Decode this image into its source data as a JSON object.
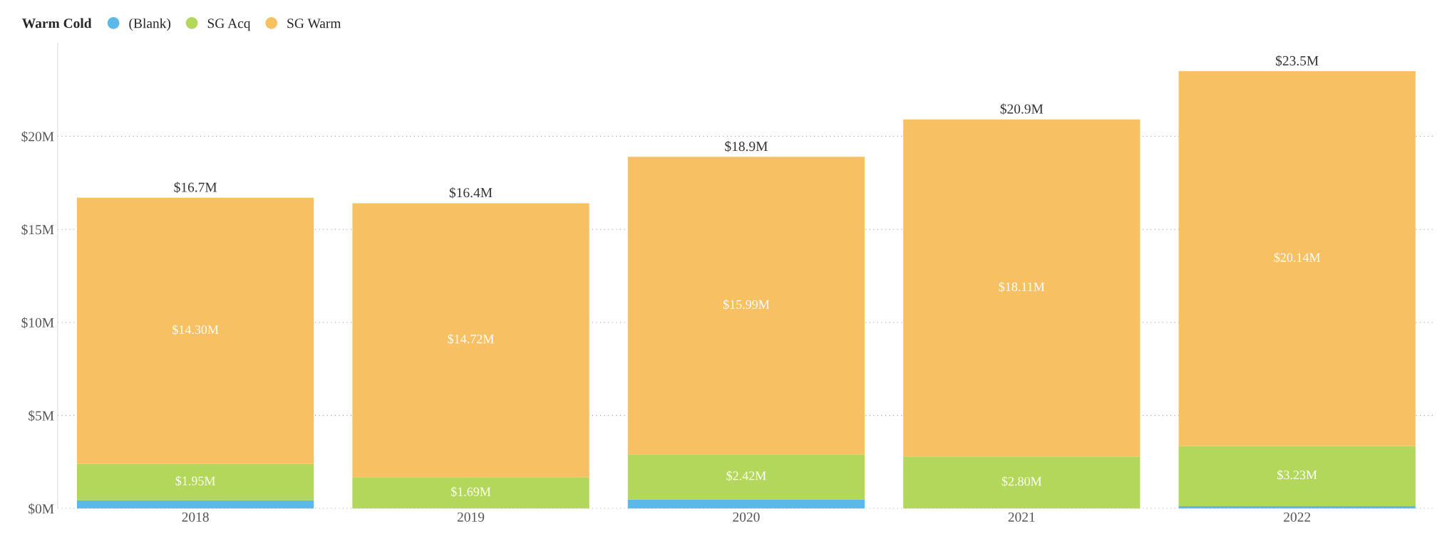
{
  "chart_data": {
    "type": "bar",
    "stacked": true,
    "legend_title": "Warm Cold",
    "legend": "top left",
    "categories": [
      "2018",
      "2019",
      "2020",
      "2021",
      "2022"
    ],
    "series": [
      {
        "name": "(Blank)",
        "color": "#5bb9e8",
        "values": [
          0.45,
          0,
          0.49,
          0,
          0.13
        ],
        "value_labels": [
          null,
          null,
          null,
          null,
          null
        ]
      },
      {
        "name": "SG Acq",
        "color": "#b2d75a",
        "values": [
          1.95,
          1.69,
          2.42,
          2.8,
          3.23
        ],
        "value_labels": [
          "$1.95M",
          "$1.69M",
          "$2.42M",
          "$2.80M",
          "$3.23M"
        ]
      },
      {
        "name": "SG Warm",
        "color": "#f7c163",
        "values": [
          14.3,
          14.72,
          15.99,
          18.11,
          20.14
        ],
        "value_labels": [
          "$14.30M",
          "$14.72M",
          "$15.99M",
          "$18.11M",
          "$20.14M"
        ]
      }
    ],
    "totals": [
      "$16.7M",
      "$16.4M",
      "$18.9M",
      "$20.9M",
      "$23.5M"
    ],
    "ylim": [
      0,
      25
    ],
    "yticks": [
      {
        "value": 0,
        "label": "$0M"
      },
      {
        "value": 5,
        "label": "$5M"
      },
      {
        "value": 10,
        "label": "$10M"
      },
      {
        "value": 15,
        "label": "$15M"
      },
      {
        "value": 20,
        "label": "$20M"
      }
    ],
    "grid": "y"
  }
}
